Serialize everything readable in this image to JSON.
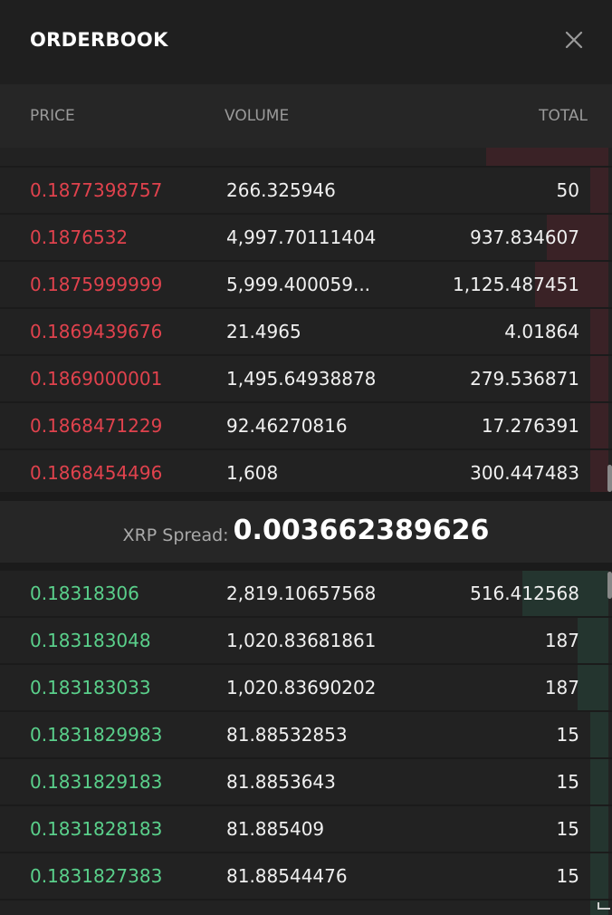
{
  "header": {
    "title": "ORDERBOOK",
    "close_icon": "close-icon"
  },
  "columns": {
    "price": "PRICE",
    "volume": "VOLUME",
    "total": "TOTAL"
  },
  "colors": {
    "ask": "#e0424d",
    "bid": "#5ad08b",
    "ask_depth": "#3a2226",
    "bid_depth": "#24352f",
    "background": "#1b1b1b"
  },
  "asks": [
    {
      "price": "",
      "volume": "",
      "total": "",
      "depth": 0.2
    },
    {
      "price": "0.1877398757",
      "volume": "266.325946",
      "total": "50",
      "depth": 0.03
    },
    {
      "price": "0.1876532",
      "volume": "4,997.70111404",
      "total": "937.834607",
      "depth": 0.1
    },
    {
      "price": "0.1875999999",
      "volume": "5,999.400059...",
      "total": "1,125.487451",
      "depth": 0.12
    },
    {
      "price": "0.1869439676",
      "volume": "21.4965",
      "total": "4.01864",
      "depth": 0.03
    },
    {
      "price": "0.1869000001",
      "volume": "1,495.64938878",
      "total": "279.536871",
      "depth": 0.03
    },
    {
      "price": "0.1868471229",
      "volume": "92.46270816",
      "total": "17.276391",
      "depth": 0.03
    },
    {
      "price": "0.1868454496",
      "volume": "1,608",
      "total": "300.447483",
      "depth": 0.03
    }
  ],
  "spread": {
    "label": "XRP Spread:",
    "value": "0.003662389626"
  },
  "bids": [
    {
      "price": "0.18318306",
      "volume": "2,819.10657568",
      "total": "516.412568",
      "depth": 0.14
    },
    {
      "price": "0.183183048",
      "volume": "1,020.83681861",
      "total": "187",
      "depth": 0.05
    },
    {
      "price": "0.183183033",
      "volume": "1,020.83690202",
      "total": "187",
      "depth": 0.05
    },
    {
      "price": "0.1831829983",
      "volume": "81.88532853",
      "total": "15",
      "depth": 0.03
    },
    {
      "price": "0.1831829183",
      "volume": "81.8853643",
      "total": "15",
      "depth": 0.03
    },
    {
      "price": "0.1831828183",
      "volume": "81.885409",
      "total": "15",
      "depth": 0.03
    },
    {
      "price": "0.1831827383",
      "volume": "81.88544476",
      "total": "15",
      "depth": 0.03
    },
    {
      "price": "",
      "volume": "",
      "total": "",
      "depth": 0.03
    }
  ]
}
